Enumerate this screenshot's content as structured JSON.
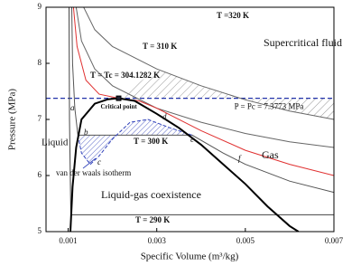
{
  "chart_data": {
    "type": "line",
    "xlabel": "Specific Volume (m³/kg)",
    "ylabel": "Pressure (MPa)",
    "xlim": [
      0.0005,
      0.007
    ],
    "xticks": [
      0.001,
      0.003,
      0.005,
      0.007
    ],
    "ylim": [
      5,
      9
    ],
    "yticks": [
      5,
      6,
      7,
      8,
      9
    ],
    "series": [
      {
        "name": "T =320 K",
        "color": "#666666",
        "x": [
          0.00135,
          0.0016,
          0.002,
          0.003,
          0.004,
          0.005,
          0.006,
          0.007
        ],
        "values": [
          9,
          8.6,
          8.3,
          7.9,
          7.6,
          7.35,
          7.15,
          7.0
        ]
      },
      {
        "name": "T = 310 K",
        "color": "#666666",
        "x": [
          0.00118,
          0.0013,
          0.0016,
          0.002,
          0.003,
          0.004,
          0.005,
          0.006,
          0.007
        ],
        "values": [
          9,
          8.4,
          7.9,
          7.6,
          7.2,
          6.95,
          6.75,
          6.6,
          6.5
        ]
      },
      {
        "name": "T = Tc = 304.1282 K",
        "color": "#e03030",
        "x": [
          0.00112,
          0.0012,
          0.0014,
          0.0017,
          0.00214,
          0.0026,
          0.003,
          0.004,
          0.005,
          0.006,
          0.007
        ],
        "values": [
          9,
          8.3,
          7.7,
          7.45,
          7.3773,
          7.33,
          7.2,
          6.8,
          6.45,
          6.2,
          6.0
        ]
      },
      {
        "name": "T = 300 K",
        "color": "#555555",
        "x": [
          0.00108,
          0.0011,
          0.00115,
          0.00122,
          0.0038,
          0.0045,
          0.005,
          0.006,
          0.007
        ],
        "values": [
          9,
          8.0,
          7.2,
          6.72,
          6.72,
          6.4,
          6.2,
          5.9,
          5.7
        ]
      },
      {
        "name": "T = 290 K",
        "color": "#444444",
        "x": [
          0.00102,
          0.00103,
          0.00106,
          0.007
        ],
        "values": [
          9,
          7,
          5.3,
          5.3
        ]
      },
      {
        "name": "van der waals isotherm",
        "color": "#3344bb",
        "dash": true,
        "x": [
          0.00122,
          0.0013,
          0.0015,
          0.0017,
          0.002,
          0.0024,
          0.0028,
          0.0033,
          0.0038
        ],
        "values": [
          6.72,
          6.4,
          6.2,
          6.35,
          6.65,
          6.95,
          7.0,
          6.85,
          6.72
        ]
      },
      {
        "color": "#000000",
        "x": [
          0.00105,
          0.0011,
          0.00118,
          0.0013,
          0.0016,
          0.0019,
          0.00214,
          0.0025,
          0.003,
          0.0035,
          0.004,
          0.0045,
          0.005,
          0.0055,
          0.006,
          0.0062
        ],
        "values": [
          5,
          5.8,
          6.5,
          7.0,
          7.28,
          7.36,
          7.3773,
          7.33,
          7.1,
          6.85,
          6.55,
          6.2,
          5.85,
          5.45,
          5.1,
          5.0
        ]
      }
    ],
    "reference_line": {
      "value": 7.3773,
      "label": "P = Pc = 7.3773 MPa",
      "color": "#2233aa"
    },
    "critical_point": {
      "x": 0.00214,
      "y": 7.3773,
      "label": "Critical point"
    },
    "annotations": [
      "Supercritical fluid",
      "Gas",
      "Liquid",
      "Liquid-gas coexistence",
      "a",
      "b",
      "c",
      "d",
      "e",
      "f"
    ]
  }
}
